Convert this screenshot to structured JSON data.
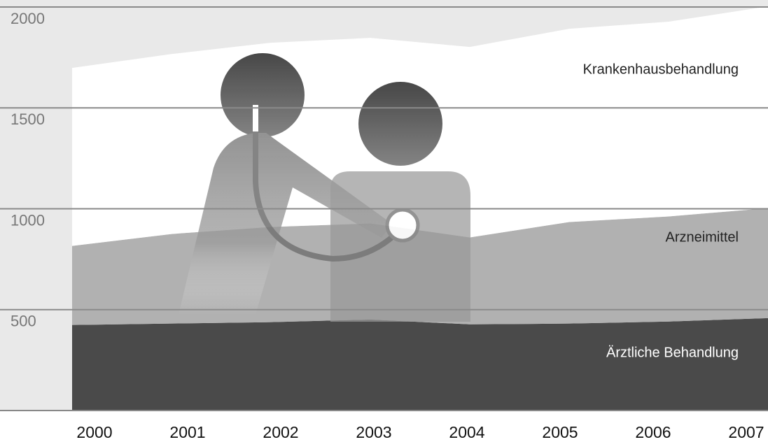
{
  "chart_data": {
    "type": "stacked-area",
    "categories": [
      "2000",
      "2001",
      "2002",
      "2003",
      "2004",
      "2005",
      "2006",
      "2007"
    ],
    "series": [
      {
        "name": "Ärztliche Behandlung",
        "color": "#4a4a4a",
        "values": [
          424,
          431,
          438,
          451,
          427,
          431,
          441,
          458
        ]
      },
      {
        "name": "Arzneimittel",
        "color": "#b1b1b1",
        "values": [
          392,
          444,
          472,
          476,
          431,
          503,
          521,
          545
        ]
      },
      {
        "name": "Krankenhausbehandlung",
        "color": "#ffffff",
        "values": [
          882,
          892,
          913,
          920,
          944,
          958,
          965,
          1000
        ]
      }
    ],
    "ylim": [
      0,
      2000
    ],
    "yticks": [
      500,
      1000,
      1500,
      2000
    ],
    "grid": true
  }
}
